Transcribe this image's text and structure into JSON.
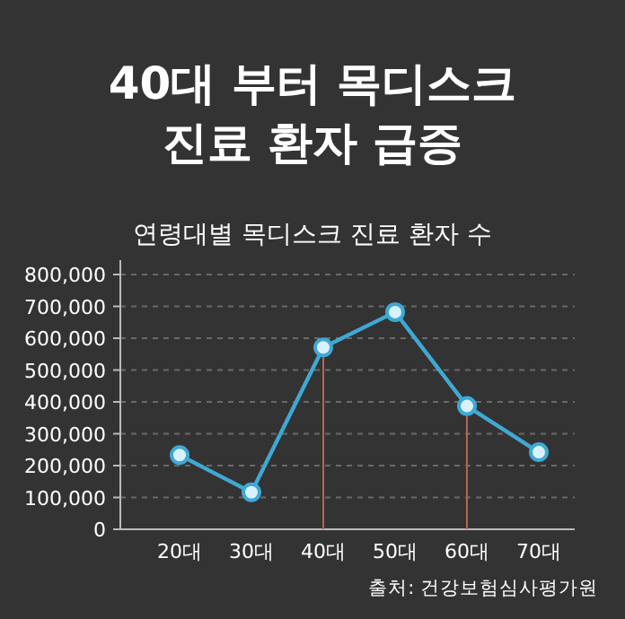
{
  "chart_data": {
    "type": "line",
    "title": "40대 부터 목디스크\n진료 환자 급증",
    "subtitle": "연령대별 목디스크 진료 환자 수",
    "categories": [
      "20대",
      "30대",
      "40대",
      "50대",
      "60대",
      "70대"
    ],
    "series": [
      {
        "color": "#3fa9d3",
        "values": [
          233000,
          116000,
          571000,
          682000,
          387000,
          242000
        ]
      }
    ],
    "ylim": [
      0,
      800000
    ],
    "yticks": [
      {
        "value": 0,
        "label": "0"
      },
      {
        "value": 100000,
        "label": "100,000"
      },
      {
        "value": 200000,
        "label": "200,000"
      },
      {
        "value": 300000,
        "label": "300,000"
      },
      {
        "value": 400000,
        "label": "400,000"
      },
      {
        "value": 500000,
        "label": "500,000"
      },
      {
        "value": 600000,
        "label": "600,000"
      },
      {
        "value": 700000,
        "label": "700,000"
      },
      {
        "value": 800000,
        "label": "800,000"
      }
    ],
    "ref_lines": [
      {
        "axis": "x",
        "value": "40대",
        "color": "#b5654f"
      },
      {
        "axis": "x",
        "value": "60대",
        "color": "#b5654f"
      }
    ],
    "grid": "y",
    "marker": "circle",
    "line_style": "solid",
    "annotations": [
      "출처: 건강보험심사평가원"
    ]
  }
}
